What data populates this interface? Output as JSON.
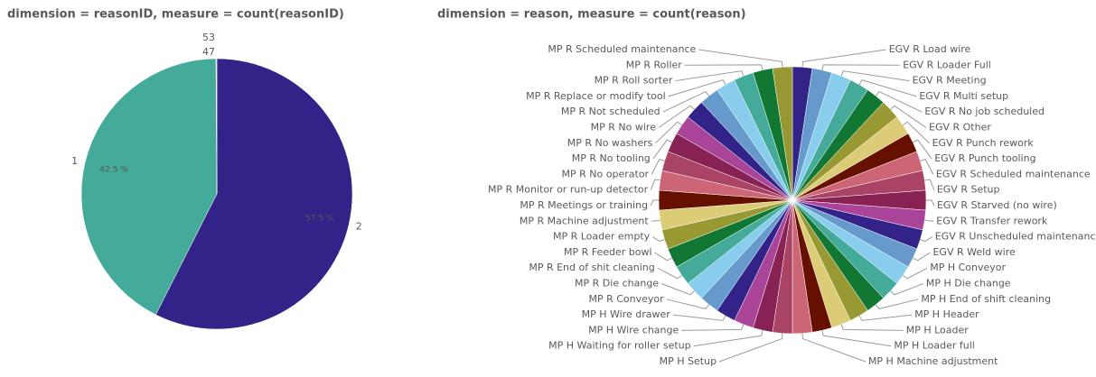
{
  "chart_data": [
    {
      "type": "pie",
      "title": "dimension = reasonID, measure = count(reasonID)",
      "categories": [
        "2",
        "1",
        "47",
        "53"
      ],
      "values": [
        57.5,
        42.5,
        0.05,
        0.05
      ],
      "value_labels": [
        "57.5 %",
        "42.5 %",
        null,
        null
      ],
      "palette": [
        "#332288",
        "#44aa99",
        "#8c8c8c",
        "#8c8c8c"
      ]
    },
    {
      "type": "pie",
      "title": "dimension = reason, measure = count(reason)",
      "categories": [
        "EGV R Load wire",
        "EGV R Loader Full",
        "EGV R Meeting",
        "EGV R Multi setup",
        "EGV R No job scheduled",
        "EGV R Other",
        "EGV R Punch rework",
        "EGV R Punch tooling",
        "EGV R Scheduled maintenance",
        "EGV R Setup",
        "EGV R Starved (no wire)",
        "EGV R Transfer rework",
        "EGV R Unscheduled maintenance",
        "EGV R Weld wire",
        "MP H Conveyor",
        "MP H Die change",
        "MP H End of shift cleaning",
        "MP H Header",
        "MP H Loader",
        "MP H Loader full",
        "MP H Machine adjustment",
        "MP H Setup",
        "MP H Waiting for roller setup",
        "MP H Wire change",
        "MP H Wire drawer",
        "MP R Conveyor",
        "MP R Die change",
        "MP R End of shit cleaning",
        "MP R Feeder bowl",
        "MP R Loader empty",
        "MP R Machine adjustment",
        "MP R Meetings or training",
        "MP R Monitor or run-up detector",
        "MP R No operator",
        "MP R No tooling",
        "MP R No washers",
        "MP R No wire",
        "MP R Not scheduled",
        "MP R Replace or modify tool",
        "MP R Roll sorter",
        "MP R Roller",
        "MP R Scheduled maintenance"
      ],
      "values": [
        1,
        1,
        1,
        1,
        1,
        1,
        1,
        1,
        1,
        1,
        1,
        1,
        1,
        1,
        1,
        1,
        1,
        1,
        1,
        1,
        1,
        1,
        1,
        1,
        1,
        1,
        1,
        1,
        1,
        1,
        1,
        1,
        1,
        1,
        1,
        1,
        1,
        1,
        1,
        1,
        1,
        1
      ],
      "palette": [
        "#332288",
        "#6699cc",
        "#88ccee",
        "#44aa99",
        "#117733",
        "#999933",
        "#ddcc77",
        "#661100",
        "#cc6677",
        "#aa4466",
        "#882255",
        "#aa4499"
      ]
    }
  ]
}
